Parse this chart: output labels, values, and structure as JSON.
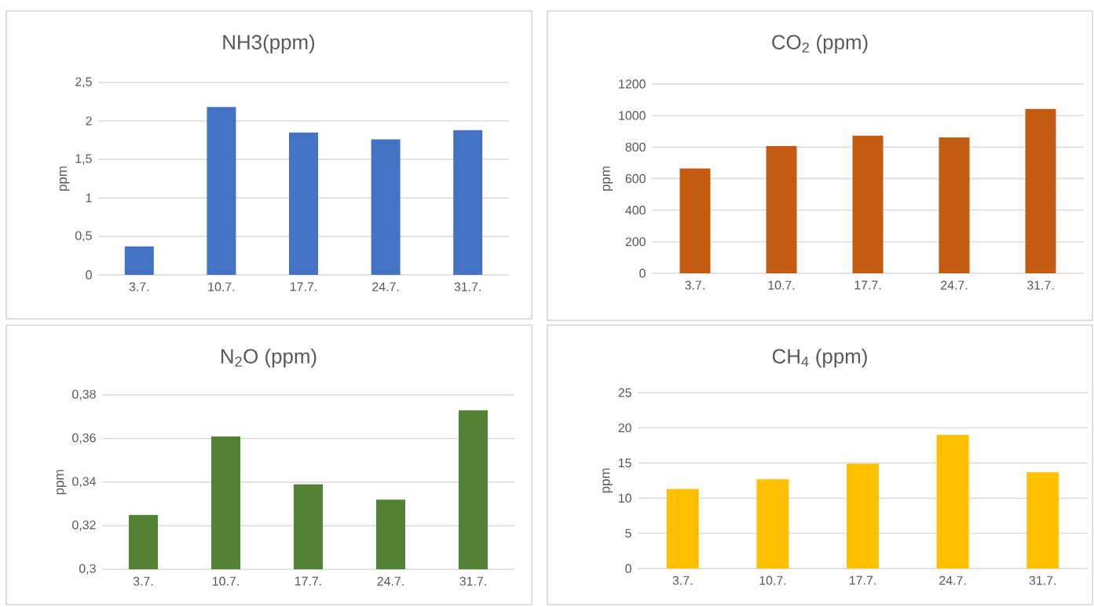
{
  "chart_data": [
    {
      "type": "bar",
      "title": "NH3(ppm)",
      "ylabel": "ppm",
      "categories": [
        "3.7.",
        "10.7.",
        "17.7.",
        "24.7.",
        "31.7."
      ],
      "color": "#4472c4",
      "values": [
        0.37,
        2.18,
        1.85,
        1.76,
        1.88
      ],
      "ylim": [
        0,
        2.5
      ],
      "yticks": [
        0,
        {
          "value": 0.5,
          "label": "0,5"
        },
        1,
        {
          "value": 1.5,
          "label": "1,5"
        },
        2,
        {
          "value": 2.5,
          "label": "2,5"
        }
      ],
      "grid": "y"
    },
    {
      "type": "bar",
      "title": "CO$_{2}$ (ppm)",
      "ylabel": "ppm",
      "categories": [
        "3.7.",
        "10.7.",
        "17.7.",
        "24.7.",
        "31.7."
      ],
      "color": "#c55a11",
      "values": [
        665,
        806,
        872,
        861,
        1042
      ],
      "ylim": [
        0,
        1200
      ],
      "yticks": [
        0,
        200,
        400,
        600,
        800,
        1000,
        1200
      ],
      "grid": "y"
    },
    {
      "type": "bar",
      "title": "N$_{2}$O (ppm)",
      "ylabel": "ppm",
      "categories": [
        "3.7.",
        "10.7.",
        "17.7.",
        "24.7.",
        "31.7."
      ],
      "color": "#548235",
      "values": [
        0.325,
        0.361,
        0.339,
        0.332,
        0.373
      ],
      "ylim": [
        0.3,
        0.38
      ],
      "yticks": [
        {
          "value": 0.3,
          "label": "0,3"
        },
        {
          "value": 0.32,
          "label": "0,32"
        },
        {
          "value": 0.34,
          "label": "0,34"
        },
        {
          "value": 0.36,
          "label": "0,36"
        },
        {
          "value": 0.38,
          "label": "0,38"
        }
      ],
      "grid": "y"
    },
    {
      "type": "bar",
      "title": "CH$_{4}$ (ppm)",
      "ylabel": "ppm",
      "categories": [
        "3.7.",
        "10.7.",
        "17.7.",
        "24.7.",
        "31.7."
      ],
      "color": "#ffc000",
      "values": [
        11.3,
        12.7,
        14.9,
        19.0,
        13.7
      ],
      "ylim": [
        0,
        25
      ],
      "yticks": [
        0,
        5,
        10,
        15,
        20,
        25
      ],
      "grid": "y"
    }
  ]
}
